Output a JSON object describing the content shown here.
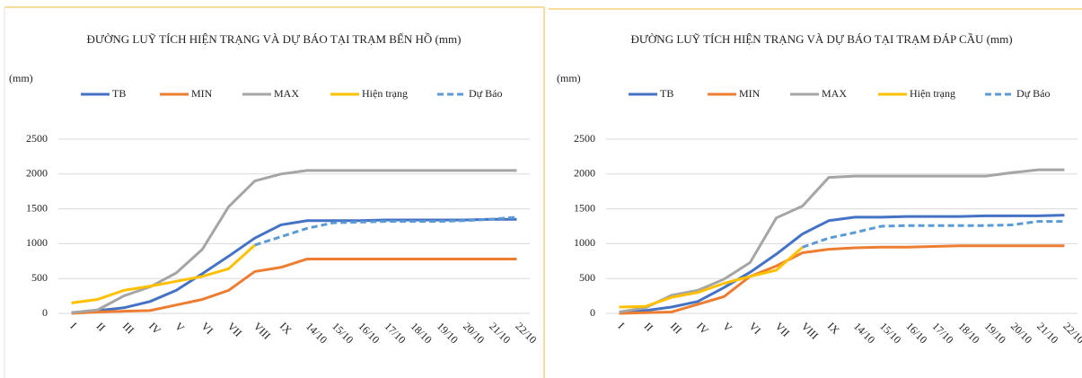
{
  "chart_data": [
    {
      "type": "line",
      "title": "ĐƯỜNG LUỸ TÍCH HIỆN TRẠNG VÀ DỰ BÁO TẠI TRẠM BẾN HỒ (mm)",
      "y_label": "(mm)",
      "categories": [
        "I",
        "II",
        "III",
        "IV",
        "V",
        "VI",
        "VII",
        "VIII",
        "IX",
        "14/10",
        "15/10",
        "16/10",
        "17/10",
        "18/10",
        "19/10",
        "20/10",
        "21/10",
        "22/10"
      ],
      "series": [
        {
          "name": "TB",
          "color": "#4472c4",
          "values": [
            10,
            40,
            80,
            170,
            330,
            570,
            820,
            1080,
            1270,
            1330,
            1330,
            1330,
            1340,
            1340,
            1340,
            1340,
            1350,
            1350
          ]
        },
        {
          "name": "MIN",
          "color": "#ed7d31",
          "values": [
            0,
            20,
            30,
            40,
            120,
            200,
            330,
            600,
            660,
            780,
            780,
            780,
            780,
            780,
            780,
            780,
            780,
            780
          ]
        },
        {
          "name": "MAX",
          "color": "#a5a5a5",
          "values": [
            10,
            50,
            250,
            380,
            580,
            920,
            1530,
            1900,
            2000,
            2050,
            2050,
            2050,
            2050,
            2050,
            2050,
            2050,
            2050,
            2050
          ]
        },
        {
          "name": "Hiện trạng",
          "color": "#ffc000",
          "values": [
            150,
            200,
            330,
            390,
            460,
            530,
            640,
            980,
            null,
            null,
            null,
            null,
            null,
            null,
            null,
            null,
            null,
            null
          ]
        },
        {
          "name": "Dự Báo",
          "color": "#5b9bd5",
          "dashed": true,
          "values": [
            null,
            null,
            null,
            null,
            null,
            null,
            null,
            980,
            1100,
            1220,
            1300,
            1310,
            1320,
            1320,
            1320,
            1330,
            1350,
            1380
          ]
        }
      ],
      "ylim": [
        0,
        2500
      ],
      "yticks": [
        0,
        500,
        1000,
        1500,
        2000,
        2500
      ],
      "grid": true
    },
    {
      "type": "line",
      "title": "ĐƯỜNG LUỸ TÍCH HIỆN TRẠNG VÀ DỰ BÁO TẠI TRẠM ĐÁP CẦU (mm)",
      "y_label": "(mm)",
      "categories": [
        "I",
        "II",
        "III",
        "IV",
        "V",
        "VI",
        "VII",
        "VIII",
        "IX",
        "14/10",
        "15/10",
        "16/10",
        "17/10",
        "18/10",
        "19/10",
        "20/10",
        "21/10",
        "22/10"
      ],
      "series": [
        {
          "name": "TB",
          "color": "#4472c4",
          "values": [
            20,
            40,
            90,
            170,
            370,
            590,
            850,
            1140,
            1330,
            1380,
            1380,
            1390,
            1390,
            1390,
            1400,
            1400,
            1400,
            1410
          ]
        },
        {
          "name": "MIN",
          "color": "#ed7d31",
          "values": [
            0,
            10,
            20,
            130,
            240,
            530,
            680,
            870,
            920,
            940,
            950,
            950,
            960,
            970,
            970,
            970,
            970,
            970
          ]
        },
        {
          "name": "MAX",
          "color": "#a5a5a5",
          "values": [
            20,
            80,
            260,
            330,
            490,
            730,
            1370,
            1540,
            1950,
            1970,
            1970,
            1970,
            1970,
            1970,
            1970,
            2020,
            2060,
            2060
          ]
        },
        {
          "name": "Hiện trạng",
          "color": "#ffc000",
          "values": [
            90,
            100,
            230,
            300,
            430,
            530,
            620,
            950,
            null,
            null,
            null,
            null,
            null,
            null,
            null,
            null,
            null,
            null
          ]
        },
        {
          "name": "Dự Báo",
          "color": "#5b9bd5",
          "dashed": true,
          "values": [
            null,
            null,
            null,
            null,
            null,
            null,
            null,
            950,
            1080,
            1160,
            1250,
            1260,
            1260,
            1260,
            1260,
            1270,
            1320,
            1320
          ]
        }
      ],
      "ylim": [
        0,
        2500
      ],
      "yticks": [
        0,
        500,
        1000,
        1500,
        2000,
        2500
      ],
      "grid": true
    }
  ]
}
